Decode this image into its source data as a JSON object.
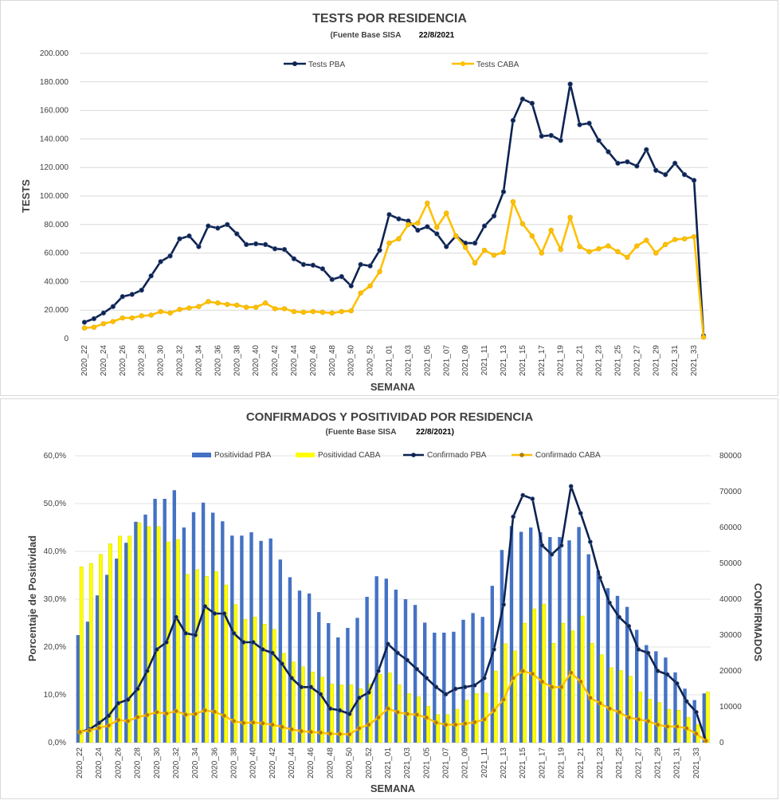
{
  "chart_data": [
    {
      "type": "line",
      "title": "TESTS POR RESIDENCIA",
      "subtitle": "(Fuente Base SISA",
      "date": "22/8/2021",
      "xlabel": "SEMANA",
      "ylabel": "TESTS",
      "ylim": [
        0,
        200000
      ],
      "yticks": [
        "0",
        "20.000",
        "40.000",
        "60.000",
        "80.000",
        "100.000",
        "120.000",
        "140.000",
        "160.000",
        "180.000",
        "200.000"
      ],
      "legend_position": "top",
      "x": [
        "2020_22",
        "2020_23",
        "2020_24",
        "2020_25",
        "2020_26",
        "2020_27",
        "2020_28",
        "2020_29",
        "2020_30",
        "2020_31",
        "2020_32",
        "2020_33",
        "2020_34",
        "2020_35",
        "2020_36",
        "2020_37",
        "2020_38",
        "2020_39",
        "2020_40",
        "2020_41",
        "2020_42",
        "2020_43",
        "2020_44",
        "2020_45",
        "2020_46",
        "2020_47",
        "2020_48",
        "2020_49",
        "2020_50",
        "2020_51",
        "2020_52",
        "2020_53",
        "2021_01",
        "2021_02",
        "2021_03",
        "2021_04",
        "2021_05",
        "2021_06",
        "2021_07",
        "2021_08",
        "2021_09",
        "2021_10",
        "2021_11",
        "2021_12",
        "2021_13",
        "2021_14",
        "2021_15",
        "2021_16",
        "2021_17",
        "2021_18",
        "2021_19",
        "2021_20",
        "2021_21",
        "2021_22",
        "2021_23",
        "2021_24",
        "2021_25",
        "2021_26",
        "2021_27",
        "2021_28",
        "2021_29",
        "2021_30",
        "2021_31",
        "2021_32",
        "2021_33",
        "2021_34"
      ],
      "series": [
        {
          "name": "Tests PBA",
          "color": "#0d2352",
          "values": [
            11500,
            14000,
            18000,
            22500,
            29500,
            31000,
            34000,
            44000,
            54000,
            58000,
            70000,
            72000,
            64500,
            79000,
            77500,
            80000,
            73500,
            66000,
            66500,
            66000,
            63000,
            62500,
            56000,
            52000,
            51500,
            49000,
            41500,
            43500,
            37000,
            52000,
            51000,
            62000,
            87000,
            84000,
            82500,
            76000,
            78500,
            73500,
            64500,
            72000,
            67000,
            67000,
            79000,
            86000,
            103000,
            153000,
            168000,
            165000,
            142000,
            142500,
            139000,
            178500,
            150000,
            151000,
            139000,
            131000,
            123000,
            124000,
            121000,
            132500,
            118000,
            115000,
            123000,
            115000,
            111000,
            2000
          ]
        },
        {
          "name": "Tests CABA",
          "color": "#ffc000",
          "values": [
            7500,
            8000,
            10500,
            12000,
            14500,
            14500,
            16000,
            16500,
            19000,
            18000,
            20500,
            21500,
            22500,
            26000,
            25000,
            24000,
            23500,
            22000,
            22000,
            25000,
            21000,
            21000,
            19000,
            18500,
            19000,
            18500,
            18000,
            19000,
            19500,
            32000,
            37000,
            47000,
            67000,
            70000,
            80000,
            81000,
            95000,
            78000,
            88000,
            72000,
            64000,
            53000,
            62000,
            58500,
            60500,
            96000,
            80500,
            72000,
            60000,
            76000,
            62500,
            85000,
            64500,
            61000,
            63000,
            65000,
            61000,
            57000,
            65000,
            69000,
            60000,
            66000,
            69500,
            70000,
            71500,
            1000
          ]
        }
      ],
      "xtick_labels": [
        "2020_22",
        "2020_24",
        "2020_26",
        "2020_28",
        "2020_30",
        "2020_32",
        "2020_34",
        "2020_36",
        "2020_38",
        "2020_40",
        "2020_42",
        "2020_44",
        "2020_46",
        "2020_48",
        "2020_50",
        "2020_52",
        "2021_01",
        "2021_03",
        "2021_05",
        "2021_07",
        "2021_09",
        "2021_11",
        "2021_13",
        "2021_15",
        "2021_17",
        "2021_19",
        "2021_21",
        "2021_23",
        "2021_25",
        "2021_27",
        "2021_29",
        "2021_31",
        "2021_33"
      ]
    },
    {
      "type": "bar",
      "title": "CONFIRMADOS Y POSITIVIDAD POR RESIDENCIA",
      "subtitle": "(Fuente Base SISA",
      "date": "22/8/2021)",
      "xlabel": "SEMANA",
      "ylabel": "Porcentaje de Positividad",
      "ylabel_right": "CONFIRMADOS",
      "ylim": [
        0,
        60
      ],
      "ylim_right": [
        0,
        80000
      ],
      "yticks": [
        "0,0%",
        "10,0%",
        "20,0%",
        "30,0%",
        "40,0%",
        "50,0%",
        "60,0%"
      ],
      "yticks_right": [
        "0",
        "10000",
        "20000",
        "30000",
        "40000",
        "50000",
        "60000",
        "70000",
        "80000"
      ],
      "legend_position": "top",
      "x": [
        "2020_22",
        "2020_23",
        "2020_24",
        "2020_25",
        "2020_26",
        "2020_27",
        "2020_28",
        "2020_29",
        "2020_30",
        "2020_31",
        "2020_32",
        "2020_33",
        "2020_34",
        "2020_35",
        "2020_36",
        "2020_37",
        "2020_38",
        "2020_39",
        "2020_40",
        "2020_41",
        "2020_42",
        "2020_43",
        "2020_44",
        "2020_45",
        "2020_46",
        "2020_47",
        "2020_48",
        "2020_49",
        "2020_50",
        "2020_51",
        "2020_52",
        "2020_53",
        "2021_01",
        "2021_02",
        "2021_03",
        "2021_04",
        "2021_05",
        "2021_06",
        "2021_07",
        "2021_08",
        "2021_09",
        "2021_10",
        "2021_11",
        "2021_12",
        "2021_13",
        "2021_14",
        "2021_15",
        "2021_16",
        "2021_17",
        "2021_18",
        "2021_19",
        "2021_20",
        "2021_21",
        "2021_22",
        "2021_23",
        "2021_24",
        "2021_25",
        "2021_26",
        "2021_27",
        "2021_28",
        "2021_29",
        "2021_30",
        "2021_31",
        "2021_32",
        "2021_33",
        "2021_34"
      ],
      "bar_series": [
        {
          "name": "Positividad PBA",
          "color": "#4472c4",
          "values": [
            22.5,
            25.3,
            30.8,
            35.1,
            38.5,
            41.8,
            46.2,
            47.7,
            51,
            51,
            52.8,
            45,
            48.2,
            50.2,
            48.1,
            46.3,
            43.3,
            43.3,
            44,
            42.2,
            42.7,
            38.3,
            34.6,
            31.8,
            31.2,
            27.3,
            25,
            22,
            24,
            26.1,
            30.5,
            34.8,
            34.3,
            32,
            30,
            28.8,
            25.1,
            23,
            23,
            23.2,
            25.7,
            27.1,
            26.3,
            32.8,
            40.3,
            45.3,
            44.1,
            45,
            44,
            43,
            43,
            42.3,
            45.1,
            39.4,
            36,
            32.3,
            30.7,
            28.4,
            23.6,
            20.4,
            19.1,
            17.8,
            14.7,
            11.3,
            8.9,
            10.3
          ]
        },
        {
          "name": "Positividad CABA",
          "color": "#ffff00",
          "values": [
            36.8,
            37.5,
            39.4,
            41.6,
            43.2,
            43.2,
            46,
            45.2,
            45.2,
            42,
            42.5,
            35.2,
            36.2,
            34.8,
            35.8,
            33,
            28.9,
            25.8,
            26.3,
            24.8,
            23.7,
            18.7,
            16.9,
            15.9,
            14.8,
            13.7,
            12.3,
            12.1,
            12.1,
            11.3,
            12.3,
            14.3,
            14.6,
            12.1,
            10.3,
            9.6,
            7.6,
            5.9,
            5.9,
            7,
            8.9,
            10.3,
            10.4,
            15,
            20.7,
            19.2,
            25,
            28,
            29,
            20.8,
            25,
            23.4,
            26.5,
            20.8,
            18.4,
            15.7,
            15.1,
            13.9,
            10.6,
            9.1,
            8.4,
            7,
            6.8,
            5.3,
            3.8,
            10.6
          ]
        }
      ],
      "line_series": [
        {
          "name": "Confirmado PBA",
          "color": "#0d2352",
          "values": [
            2900,
            3700,
            5500,
            7500,
            11000,
            12000,
            15000,
            20000,
            26000,
            28000,
            35000,
            30500,
            30000,
            38000,
            36000,
            36000,
            30500,
            28000,
            28000,
            26000,
            25000,
            22000,
            18000,
            15500,
            15500,
            13500,
            9500,
            9000,
            8000,
            12500,
            14000,
            20000,
            27500,
            25000,
            23000,
            20500,
            18000,
            15500,
            13500,
            15000,
            15500,
            16000,
            18000,
            26000,
            38500,
            63000,
            69000,
            68000,
            55000,
            52500,
            55000,
            71500,
            64000,
            56000,
            46000,
            39000,
            35000,
            32500,
            26000,
            25000,
            20000,
            19000,
            16500,
            11500,
            8500,
            500
          ]
        },
        {
          "name": "Confirmado CABA",
          "color": "#ffc000",
          "values": [
            3000,
            3400,
            4100,
            4800,
            6300,
            6000,
            7100,
            7700,
            8500,
            8100,
            8800,
            7800,
            8000,
            9000,
            8600,
            7500,
            6000,
            5500,
            5600,
            5400,
            5000,
            4400,
            3700,
            3200,
            3000,
            2800,
            2500,
            2400,
            2300,
            4000,
            5000,
            7000,
            9500,
            8500,
            8000,
            7800,
            7000,
            5600,
            5000,
            5000,
            5300,
            5700,
            6500,
            9000,
            12000,
            18000,
            20000,
            19200,
            17000,
            15500,
            15500,
            19500,
            17000,
            12500,
            11000,
            9500,
            8500,
            7000,
            6500,
            6000,
            5000,
            4500,
            4500,
            4000,
            2500,
            500
          ]
        }
      ],
      "xtick_labels": [
        "2020_22",
        "2020_24",
        "2020_26",
        "2020_28",
        "2020_30",
        "2020_32",
        "2020_34",
        "2020_36",
        "2020_38",
        "2020_40",
        "2020_42",
        "2020_44",
        "2020_46",
        "2020_48",
        "2020_50",
        "2020_52",
        "2021_01",
        "2021_03",
        "2021_05",
        "2021_07",
        "2021_09",
        "2021_11",
        "2021_13",
        "2021_15",
        "2021_17",
        "2021_19",
        "2021_21",
        "2021_23",
        "2021_25",
        "2021_27",
        "2021_29",
        "2021_31",
        "2021_33"
      ]
    }
  ]
}
